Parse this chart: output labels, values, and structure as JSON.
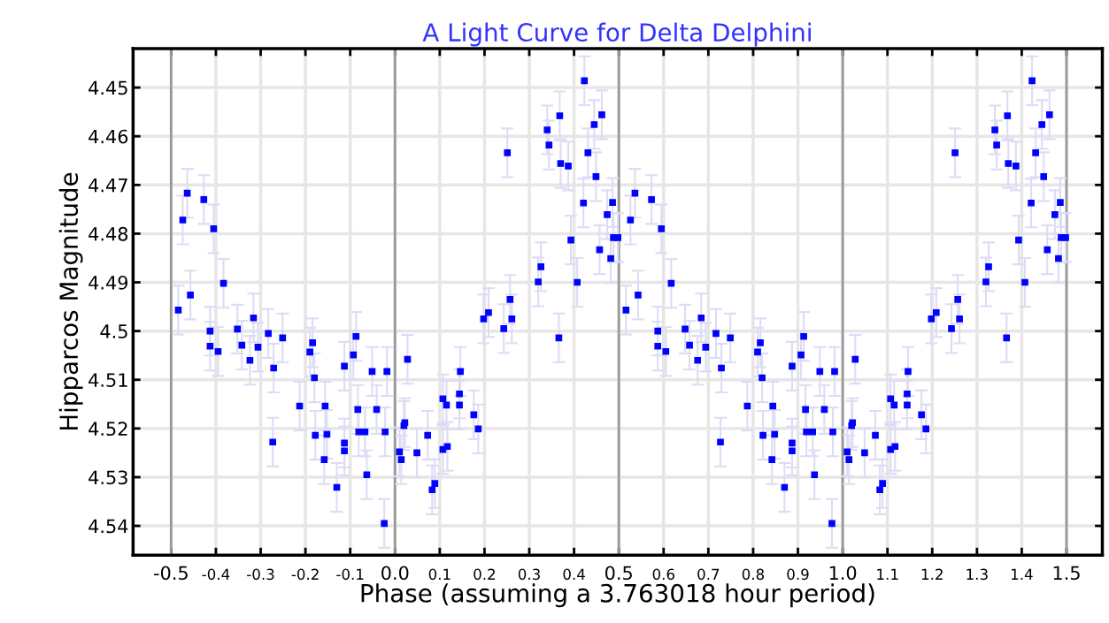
{
  "chart_data": {
    "type": "scatter",
    "title": "A Light Curve for Delta Delphini",
    "xlabel": "Phase (assuming a 3.763018 hour period)",
    "ylabel": "Hipparcos Magnitude",
    "xlim": [
      -0.585,
      1.58
    ],
    "ylim": [
      4.546,
      4.442
    ],
    "xticks": [
      -0.5,
      -0.4,
      -0.3,
      -0.2,
      -0.1,
      {
        "value": 0,
        "label": "0.0"
      },
      0.1,
      0.2,
      0.3,
      0.4,
      0.5,
      0.6,
      0.7,
      0.8,
      0.9,
      {
        "value": 1,
        "label": "1.0"
      },
      1.1,
      1.2,
      1.3,
      1.4,
      1.5
    ],
    "yticks": [
      4.45,
      4.46,
      4.47,
      4.48,
      4.49,
      4.5,
      4.51,
      4.52,
      4.53,
      4.54
    ],
    "grid": true,
    "marker": "square",
    "series": [
      {
        "color": "#0000ff",
        "x": [
          -0.484,
          -0.474,
          -0.464,
          -0.457,
          -0.427,
          -0.413,
          -0.413,
          -0.405,
          -0.395,
          -0.383,
          -0.352,
          -0.342,
          -0.324,
          -0.316,
          -0.306,
          -0.283,
          -0.271,
          -0.273,
          -0.251,
          -0.213,
          -0.19,
          -0.184,
          -0.18,
          -0.178,
          -0.156,
          -0.158,
          -0.152,
          -0.13,
          -0.113,
          -0.113,
          -0.113,
          -0.093,
          -0.087,
          -0.083,
          -0.081,
          -0.067,
          -0.063,
          -0.051,
          -0.041,
          -0.024,
          -0.022,
          -0.018,
          0.01,
          0.014,
          0.02,
          0.028,
          0.022,
          0.049,
          0.073,
          0.083,
          0.089,
          0.107,
          0.117,
          0.107,
          0.115,
          0.144,
          0.144,
          0.146,
          0.176,
          0.186,
          0.198,
          0.209,
          0.243,
          0.251,
          0.257,
          0.261,
          0.32,
          0.326,
          0.34,
          0.344,
          0.366,
          0.368,
          0.37,
          0.387,
          0.393,
          0.407,
          0.423,
          0.421,
          0.431,
          0.445,
          0.449,
          0.457,
          0.462,
          0.474,
          0.486,
          0.482,
          0.488,
          0.498,
          0.516,
          0.526,
          0.536,
          0.543,
          0.573,
          0.587,
          0.587,
          0.595,
          0.605,
          0.617,
          0.648,
          0.658,
          0.676,
          0.684,
          0.694,
          0.717,
          0.729,
          0.727,
          0.749,
          0.787,
          0.81,
          0.816,
          0.82,
          0.822,
          0.844,
          0.842,
          0.848,
          0.87,
          0.887,
          0.887,
          0.887,
          0.907,
          0.913,
          0.917,
          0.919,
          0.933,
          0.937,
          0.949,
          0.959,
          0.976,
          0.978,
          0.982,
          1.01,
          1.014,
          1.02,
          1.028,
          1.022,
          1.049,
          1.073,
          1.083,
          1.089,
          1.107,
          1.117,
          1.107,
          1.115,
          1.144,
          1.144,
          1.146,
          1.176,
          1.186,
          1.198,
          1.209,
          1.243,
          1.251,
          1.257,
          1.261,
          1.32,
          1.326,
          1.34,
          1.344,
          1.366,
          1.368,
          1.37,
          1.387,
          1.393,
          1.407,
          1.423,
          1.421,
          1.431,
          1.445,
          1.449,
          1.457,
          1.462,
          1.474,
          1.486,
          1.482,
          1.488,
          1.498
        ],
        "values": [
          4.4957,
          4.4772,
          4.4717,
          4.4926,
          4.473,
          4.5,
          4.5031,
          4.479,
          4.5042,
          4.4902,
          4.4996,
          4.5029,
          4.506,
          4.4973,
          4.5033,
          4.5005,
          4.5076,
          4.5228,
          4.5014,
          4.5154,
          4.5043,
          4.5024,
          4.5096,
          4.5214,
          4.5154,
          4.5264,
          4.5212,
          4.5321,
          4.5072,
          4.523,
          4.5246,
          4.5049,
          4.5011,
          4.5161,
          4.5207,
          4.5207,
          4.5295,
          4.5083,
          4.5161,
          4.5395,
          4.5207,
          4.5083,
          4.5248,
          4.5264,
          4.5194,
          4.5058,
          4.5188,
          4.525,
          4.5214,
          4.5326,
          4.5313,
          4.5243,
          4.5237,
          4.5139,
          4.5152,
          4.5129,
          4.5152,
          4.5083,
          4.5172,
          4.5201,
          4.4975,
          4.4962,
          4.4995,
          4.4634,
          4.4935,
          4.4975,
          4.4899,
          4.4868,
          4.4587,
          4.4618,
          4.5014,
          4.4558,
          4.4656,
          4.4661,
          4.4813,
          4.49,
          4.4486,
          4.4737,
          4.4634,
          4.4576,
          4.4683,
          4.4833,
          4.4556,
          4.4761,
          4.4736,
          4.4851,
          4.4808,
          4.4808,
          4.4957,
          4.4772,
          4.4717,
          4.4926,
          4.473,
          4.5,
          4.5031,
          4.479,
          4.5042,
          4.4902,
          4.4996,
          4.5029,
          4.506,
          4.4973,
          4.5033,
          4.5005,
          4.5076,
          4.5228,
          4.5014,
          4.5154,
          4.5043,
          4.5024,
          4.5096,
          4.5214,
          4.5154,
          4.5264,
          4.5212,
          4.5321,
          4.5072,
          4.523,
          4.5246,
          4.5049,
          4.5011,
          4.5161,
          4.5207,
          4.5207,
          4.5295,
          4.5083,
          4.5161,
          4.5395,
          4.5207,
          4.5083,
          4.5248,
          4.5264,
          4.5194,
          4.5058,
          4.5188,
          4.525,
          4.5214,
          4.5326,
          4.5313,
          4.5243,
          4.5237,
          4.5139,
          4.5152,
          4.5129,
          4.5152,
          4.5083,
          4.5172,
          4.5201,
          4.4975,
          4.4962,
          4.4995,
          4.4634,
          4.4935,
          4.4975,
          4.4899,
          4.4868,
          4.4587,
          4.4618,
          4.5014,
          4.4558,
          4.4656,
          4.4661,
          4.4813,
          4.49,
          4.4486,
          4.4737,
          4.4634,
          4.4576,
          4.4683,
          4.4833,
          4.4556,
          4.4761,
          4.4736,
          4.4851,
          4.4808,
          4.4808
        ],
        "errors": [
          0.005,
          0.005,
          0.005,
          0.005,
          0.005,
          0.005,
          0.005,
          0.005,
          0.005,
          0.005,
          0.005,
          0.005,
          0.005,
          0.005,
          0.005,
          0.005,
          0.005,
          0.005,
          0.005,
          0.005,
          0.005,
          0.005,
          0.005,
          0.005,
          0.005,
          0.005,
          0.005,
          0.005,
          0.005,
          0.005,
          0.005,
          0.005,
          0.005,
          0.005,
          0.005,
          0.005,
          0.005,
          0.005,
          0.005,
          0.005,
          0.005,
          0.005,
          0.005,
          0.005,
          0.005,
          0.005,
          0.005,
          0.005,
          0.005,
          0.005,
          0.005,
          0.005,
          0.005,
          0.005,
          0.005,
          0.005,
          0.005,
          0.005,
          0.005,
          0.005,
          0.005,
          0.005,
          0.005,
          0.005,
          0.005,
          0.005,
          0.005,
          0.005,
          0.005,
          0.005,
          0.005,
          0.005,
          0.005,
          0.005,
          0.005,
          0.005,
          0.005,
          0.005,
          0.005,
          0.005,
          0.005,
          0.005,
          0.005,
          0.005,
          0.005,
          0.005,
          0.005,
          0.005,
          0.005,
          0.005,
          0.005,
          0.005,
          0.005,
          0.005,
          0.005,
          0.005,
          0.005,
          0.005,
          0.005,
          0.005,
          0.005,
          0.005,
          0.005,
          0.005,
          0.005,
          0.005,
          0.005,
          0.005,
          0.005,
          0.005,
          0.005,
          0.005,
          0.005,
          0.005,
          0.005,
          0.005,
          0.005,
          0.005,
          0.005,
          0.005,
          0.005,
          0.005,
          0.005,
          0.005,
          0.005,
          0.005,
          0.005,
          0.005,
          0.005,
          0.005,
          0.005,
          0.005,
          0.005,
          0.005,
          0.005,
          0.005,
          0.005,
          0.005,
          0.005,
          0.005,
          0.005,
          0.005,
          0.005,
          0.005,
          0.005,
          0.005,
          0.005,
          0.005,
          0.005,
          0.005,
          0.005,
          0.005,
          0.005,
          0.005,
          0.005,
          0.005,
          0.005,
          0.005,
          0.005,
          0.005,
          0.005,
          0.005,
          0.005,
          0.005,
          0.005,
          0.005,
          0.005,
          0.005,
          0.005,
          0.005,
          0.005,
          0.005,
          0.005,
          0.005,
          0.005,
          0.005
        ]
      }
    ]
  }
}
